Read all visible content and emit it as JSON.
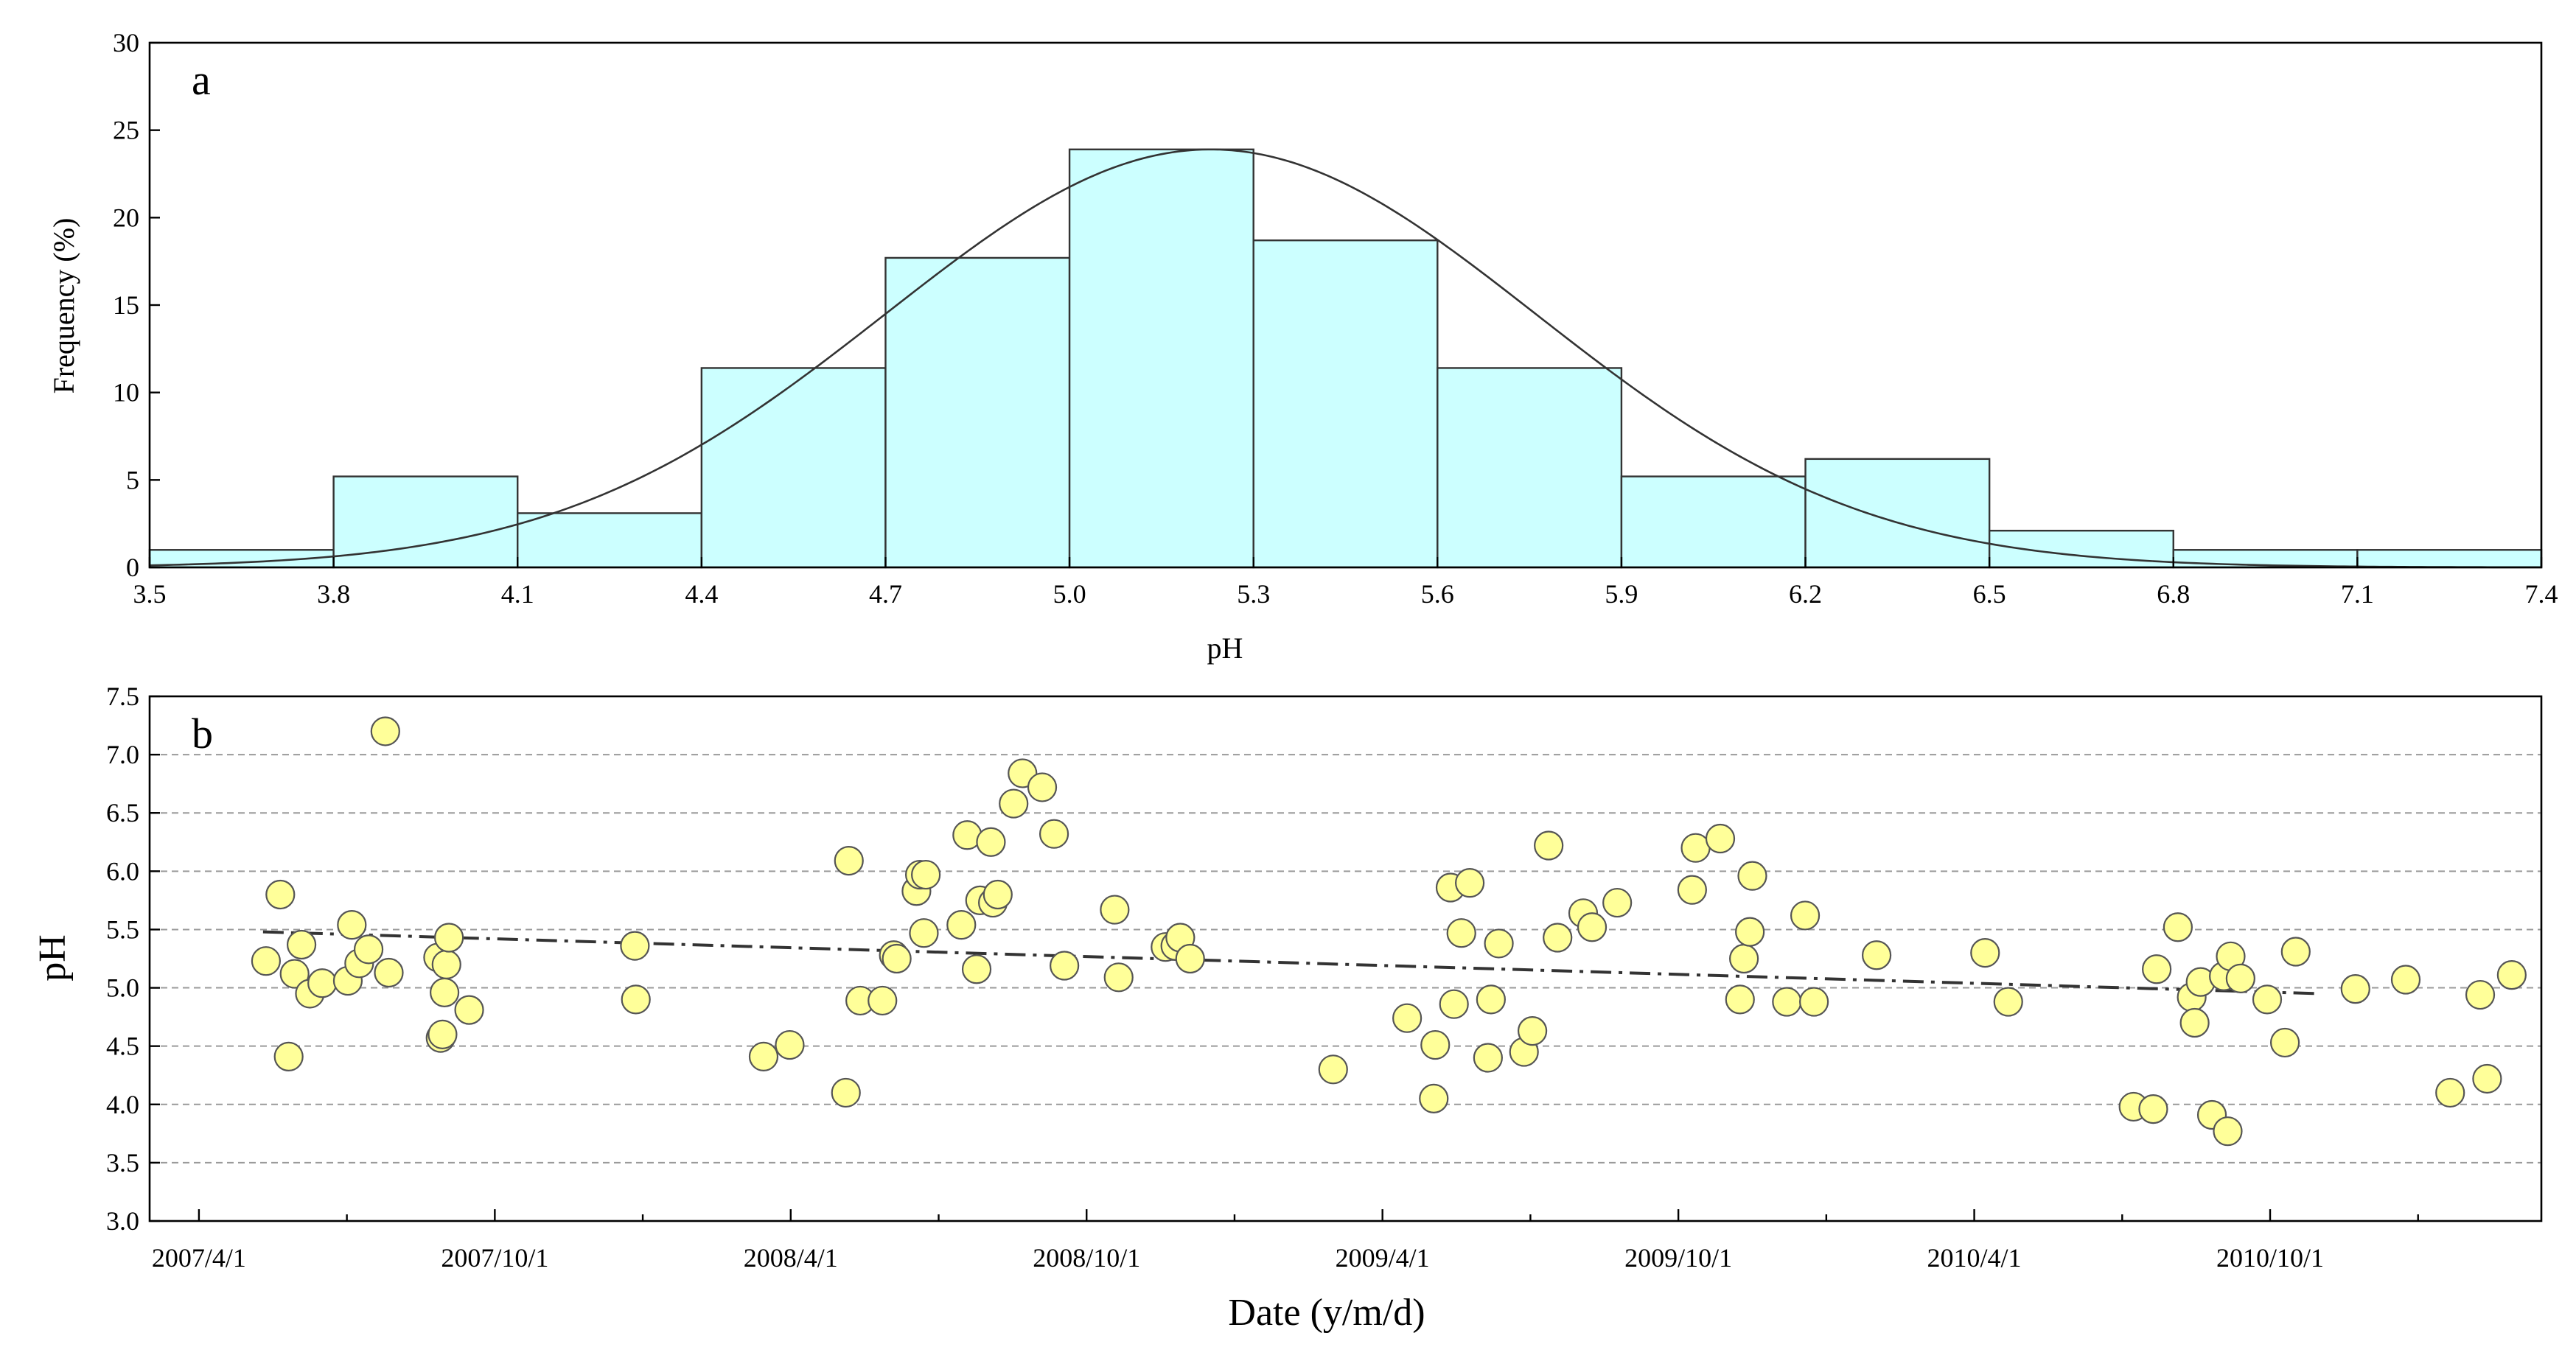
{
  "chart_data": [
    {
      "panel": "a",
      "type": "bar",
      "subtype": "histogram",
      "xlabel": "pH",
      "ylabel": "Frequency (%)",
      "xlim": [
        3.5,
        7.4
      ],
      "ylim": [
        0,
        30
      ],
      "x_ticks": [
        "3.5",
        "3.8",
        "4.1",
        "4.4",
        "4.7",
        "5.0",
        "5.3",
        "5.6",
        "5.9",
        "6.2",
        "6.5",
        "6.8",
        "7.1",
        "7.4"
      ],
      "y_ticks": [
        "0",
        "5",
        "10",
        "15",
        "20",
        "25",
        "30"
      ],
      "bins": [
        {
          "from": 3.5,
          "to": 3.8,
          "value": 1.0
        },
        {
          "from": 3.8,
          "to": 4.1,
          "value": 5.2
        },
        {
          "from": 4.1,
          "to": 4.4,
          "value": 3.1
        },
        {
          "from": 4.4,
          "to": 4.7,
          "value": 11.4
        },
        {
          "from": 4.7,
          "to": 5.0,
          "value": 17.7
        },
        {
          "from": 5.0,
          "to": 5.3,
          "value": 23.9
        },
        {
          "from": 5.3,
          "to": 5.6,
          "value": 18.7
        },
        {
          "from": 5.6,
          "to": 5.9,
          "value": 11.4
        },
        {
          "from": 5.9,
          "to": 6.2,
          "value": 5.2
        },
        {
          "from": 6.2,
          "to": 6.5,
          "value": 6.2
        },
        {
          "from": 6.5,
          "to": 6.8,
          "value": 2.1
        },
        {
          "from": 6.8,
          "to": 7.1,
          "value": 1.0
        },
        {
          "from": 7.1,
          "to": 7.4,
          "value": 1.0
        }
      ],
      "normal_fit": {
        "mean": 5.23,
        "sd": 0.53,
        "peak": 23.9
      },
      "bar_color": "#ccffff",
      "bar_edge_color": "#333333",
      "curve_color": "#333333"
    },
    {
      "panel": "b",
      "type": "scatter",
      "xlabel": "Date (y/m/d)",
      "ylabel": "pH",
      "ylim": [
        3.0,
        7.5
      ],
      "x_ticks": [
        "2007/4/1",
        "2007/10/1",
        "2008/4/1",
        "2008/10/1",
        "2009/4/1",
        "2009/10/1",
        "2010/4/1",
        "2010/10/1"
      ],
      "x_tick_months": [
        0,
        6,
        12,
        18,
        24,
        30,
        36,
        42
      ],
      "xlim_months": [
        -1,
        47.5
      ],
      "x_unit": "months since 2007/4/1",
      "y_ticks": [
        "3.0",
        "3.5",
        "4.0",
        "4.5",
        "5.0",
        "5.5",
        "6.0",
        "6.5",
        "7.0",
        "7.5"
      ],
      "grid": "horizontal dashed",
      "trend": {
        "style": "dash-dot",
        "start": [
          1.3,
          5.48
        ],
        "end": [
          43.0,
          4.95
        ]
      },
      "point_color": "#ffff99",
      "point_edge_color": "#555555",
      "points": [
        [
          1.36,
          5.23
        ],
        [
          1.65,
          5.8
        ],
        [
          1.82,
          4.41
        ],
        [
          1.94,
          5.12
        ],
        [
          2.08,
          5.37
        ],
        [
          2.25,
          4.95
        ],
        [
          2.5,
          5.04
        ],
        [
          3.02,
          5.06
        ],
        [
          3.1,
          5.54
        ],
        [
          3.25,
          5.21
        ],
        [
          3.44,
          5.33
        ],
        [
          3.78,
          7.2
        ],
        [
          3.85,
          5.13
        ],
        [
          4.85,
          5.26
        ],
        [
          4.9,
          4.57
        ],
        [
          4.94,
          4.6
        ],
        [
          4.98,
          4.96
        ],
        [
          5.02,
          5.2
        ],
        [
          5.07,
          5.43
        ],
        [
          5.48,
          4.81
        ],
        [
          8.84,
          5.36
        ],
        [
          8.86,
          4.9
        ],
        [
          11.45,
          4.41
        ],
        [
          11.98,
          4.51
        ],
        [
          13.12,
          4.1
        ],
        [
          13.18,
          6.09
        ],
        [
          13.41,
          4.89
        ],
        [
          13.86,
          4.89
        ],
        [
          14.09,
          5.28
        ],
        [
          14.15,
          5.25
        ],
        [
          14.55,
          5.83
        ],
        [
          14.62,
          5.97
        ],
        [
          14.7,
          5.47
        ],
        [
          14.74,
          5.97
        ],
        [
          15.46,
          5.54
        ],
        [
          15.58,
          6.31
        ],
        [
          15.77,
          5.16
        ],
        [
          15.84,
          5.75
        ],
        [
          16.06,
          6.25
        ],
        [
          16.1,
          5.73
        ],
        [
          16.2,
          5.8
        ],
        [
          16.52,
          6.58
        ],
        [
          16.7,
          6.84
        ],
        [
          17.1,
          6.72
        ],
        [
          17.34,
          6.32
        ],
        [
          17.55,
          5.19
        ],
        [
          18.57,
          5.67
        ],
        [
          18.65,
          5.09
        ],
        [
          19.6,
          5.35
        ],
        [
          19.8,
          5.36
        ],
        [
          19.9,
          5.43
        ],
        [
          20.1,
          5.25
        ],
        [
          23.0,
          4.3
        ],
        [
          24.5,
          4.74
        ],
        [
          25.07,
          4.51
        ],
        [
          25.04,
          4.05
        ],
        [
          25.38,
          5.86
        ],
        [
          25.45,
          4.86
        ],
        [
          25.6,
          5.47
        ],
        [
          25.77,
          5.9
        ],
        [
          26.14,
          4.4
        ],
        [
          26.2,
          4.9
        ],
        [
          26.36,
          5.38
        ],
        [
          26.87,
          4.45
        ],
        [
          27.04,
          4.63
        ],
        [
          27.37,
          6.22
        ],
        [
          27.55,
          5.43
        ],
        [
          28.07,
          5.64
        ],
        [
          28.25,
          5.52
        ],
        [
          28.76,
          5.73
        ],
        [
          30.28,
          5.84
        ],
        [
          30.35,
          6.2
        ],
        [
          30.85,
          6.28
        ],
        [
          31.25,
          4.9
        ],
        [
          31.33,
          5.25
        ],
        [
          31.45,
          5.48
        ],
        [
          31.5,
          5.96
        ],
        [
          32.2,
          4.88
        ],
        [
          32.57,
          5.62
        ],
        [
          32.75,
          4.88
        ],
        [
          34.02,
          5.28
        ],
        [
          36.22,
          5.3
        ],
        [
          36.69,
          4.88
        ],
        [
          39.23,
          3.98
        ],
        [
          39.63,
          3.96
        ],
        [
          39.7,
          5.16
        ],
        [
          40.13,
          5.52
        ],
        [
          40.41,
          4.92
        ],
        [
          40.47,
          4.7
        ],
        [
          40.59,
          5.05
        ],
        [
          40.82,
          3.91
        ],
        [
          41.06,
          5.1
        ],
        [
          41.14,
          3.77
        ],
        [
          41.2,
          5.27
        ],
        [
          41.4,
          5.08
        ],
        [
          41.94,
          4.9
        ],
        [
          42.3,
          4.53
        ],
        [
          42.52,
          5.31
        ],
        [
          43.73,
          4.99
        ],
        [
          44.75,
          5.07
        ],
        [
          45.65,
          4.1
        ],
        [
          46.26,
          4.94
        ],
        [
          46.4,
          4.22
        ],
        [
          46.9,
          5.11
        ]
      ]
    }
  ]
}
